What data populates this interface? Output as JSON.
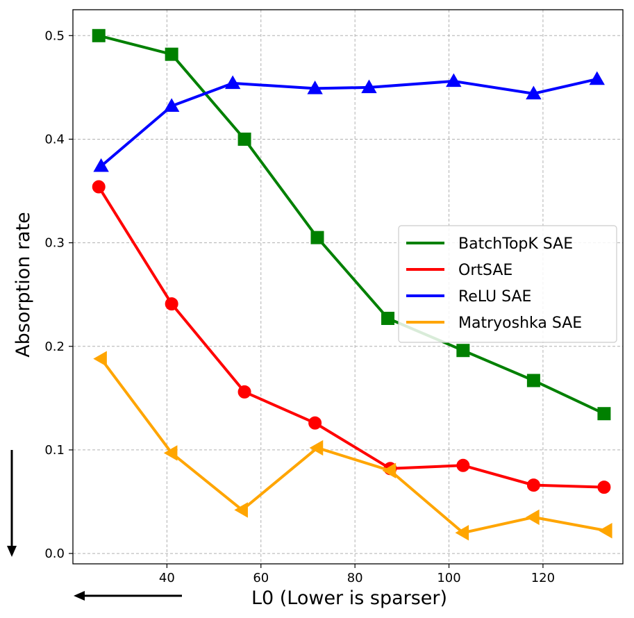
{
  "chart_data": {
    "type": "line",
    "title": "",
    "xlabel": "L0 (Lower is sparser)",
    "ylabel": "Absorption rate",
    "xlim": [
      20,
      137
    ],
    "ylim": [
      -0.01,
      0.525
    ],
    "xticks": [
      40,
      60,
      80,
      100,
      120
    ],
    "yticks": [
      0.0,
      0.1,
      0.2,
      0.3,
      0.4,
      0.5
    ],
    "ytick_labels": [
      "0.0",
      "0.1",
      "0.2",
      "0.3",
      "0.4",
      "0.5"
    ],
    "xtick_labels": [
      "40",
      "60",
      "80",
      "100",
      "120"
    ],
    "grid": true,
    "legend_position": "center-right",
    "series": [
      {
        "name": "BatchTopK SAE",
        "color": "#008000",
        "marker": "square",
        "x": [
          25.5,
          41,
          56.5,
          72,
          87,
          103,
          118,
          133
        ],
        "y": [
          0.5,
          0.482,
          0.4,
          0.305,
          0.227,
          0.196,
          0.167,
          0.135
        ]
      },
      {
        "name": "OrtSAE",
        "color": "#ff0000",
        "marker": "circle",
        "x": [
          25.5,
          41,
          56.5,
          71.5,
          87.5,
          103,
          118,
          133
        ],
        "y": [
          0.354,
          0.241,
          0.156,
          0.126,
          0.082,
          0.085,
          0.066,
          0.064
        ]
      },
      {
        "name": "ReLU SAE",
        "color": "#0000ff",
        "marker": "triangle-up",
        "x": [
          26,
          41,
          54,
          71.5,
          83,
          101,
          118,
          131.5
        ],
        "y": [
          0.374,
          0.432,
          0.454,
          0.449,
          0.45,
          0.456,
          0.444,
          0.458
        ]
      },
      {
        "name": "Matryoshka SAE",
        "color": "#ffa500",
        "marker": "triangle-left",
        "x": [
          26,
          41,
          56,
          72,
          87.5,
          103,
          118,
          133.5
        ],
        "y": [
          0.188,
          0.097,
          0.042,
          0.102,
          0.08,
          0.02,
          0.035,
          0.022
        ]
      }
    ]
  }
}
